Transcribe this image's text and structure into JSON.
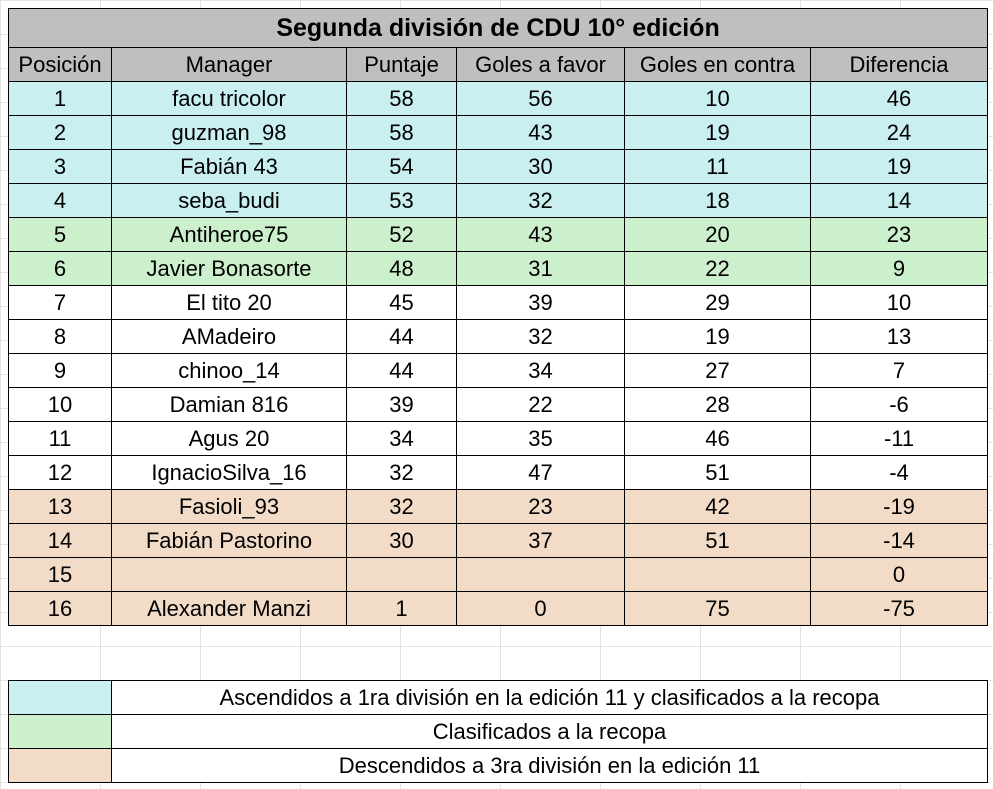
{
  "title": "Segunda división de CDU 10° edición",
  "columns": [
    "Posición",
    "Manager",
    "Puntaje",
    "Goles a favor",
    "Goles en contra",
    "Diferencia"
  ],
  "rows": [
    {
      "pos": "1",
      "manager": "facu tricolor",
      "pts": "58",
      "gf": "56",
      "gc": "10",
      "dif": "46",
      "group": "asc"
    },
    {
      "pos": "2",
      "manager": "guzman_98",
      "pts": "58",
      "gf": "43",
      "gc": "19",
      "dif": "24",
      "group": "asc"
    },
    {
      "pos": "3",
      "manager": "Fabián 43",
      "pts": "54",
      "gf": "30",
      "gc": "11",
      "dif": "19",
      "group": "asc"
    },
    {
      "pos": "4",
      "manager": "seba_budi",
      "pts": "53",
      "gf": "32",
      "gc": "18",
      "dif": "14",
      "group": "asc"
    },
    {
      "pos": "5",
      "manager": "Antiheroe75",
      "pts": "52",
      "gf": "43",
      "gc": "20",
      "dif": "23",
      "group": "rec"
    },
    {
      "pos": "6",
      "manager": "Javier Bonasorte",
      "pts": "48",
      "gf": "31",
      "gc": "22",
      "dif": "9",
      "group": "rec"
    },
    {
      "pos": "7",
      "manager": "El tito 20",
      "pts": "45",
      "gf": "39",
      "gc": "29",
      "dif": "10",
      "group": "norm"
    },
    {
      "pos": "8",
      "manager": "AMadeiro",
      "pts": "44",
      "gf": "32",
      "gc": "19",
      "dif": "13",
      "group": "norm"
    },
    {
      "pos": "9",
      "manager": "chinoo_14",
      "pts": "44",
      "gf": "34",
      "gc": "27",
      "dif": "7",
      "group": "norm"
    },
    {
      "pos": "10",
      "manager": "Damian 816",
      "pts": "39",
      "gf": "22",
      "gc": "28",
      "dif": "-6",
      "group": "norm"
    },
    {
      "pos": "11",
      "manager": "Agus 20",
      "pts": "34",
      "gf": "35",
      "gc": "46",
      "dif": "-11",
      "group": "norm"
    },
    {
      "pos": "12",
      "manager": "IgnacioSilva_16",
      "pts": "32",
      "gf": "47",
      "gc": "51",
      "dif": "-4",
      "group": "norm"
    },
    {
      "pos": "13",
      "manager": "Fasioli_93",
      "pts": "32",
      "gf": "23",
      "gc": "42",
      "dif": "-19",
      "group": "desc"
    },
    {
      "pos": "14",
      "manager": "Fabián Pastorino",
      "pts": "30",
      "gf": "37",
      "gc": "51",
      "dif": "-14",
      "group": "desc"
    },
    {
      "pos": "15",
      "manager": "",
      "pts": "",
      "gf": "",
      "gc": "",
      "dif": "0",
      "group": "desc"
    },
    {
      "pos": "16",
      "manager": "Alexander Manzi",
      "pts": "1",
      "gf": "0",
      "gc": "75",
      "dif": "-75",
      "group": "desc"
    }
  ],
  "legend": [
    {
      "color": "#c9eff1",
      "text": "Ascendidos a 1ra división en la edición 11 y clasificados a la recopa"
    },
    {
      "color": "#ccf0cc",
      "text": "Clasificados a la recopa"
    },
    {
      "color": "#f2dcc8",
      "text": "Descendidos a 3ra división en la edición 11"
    }
  ]
}
